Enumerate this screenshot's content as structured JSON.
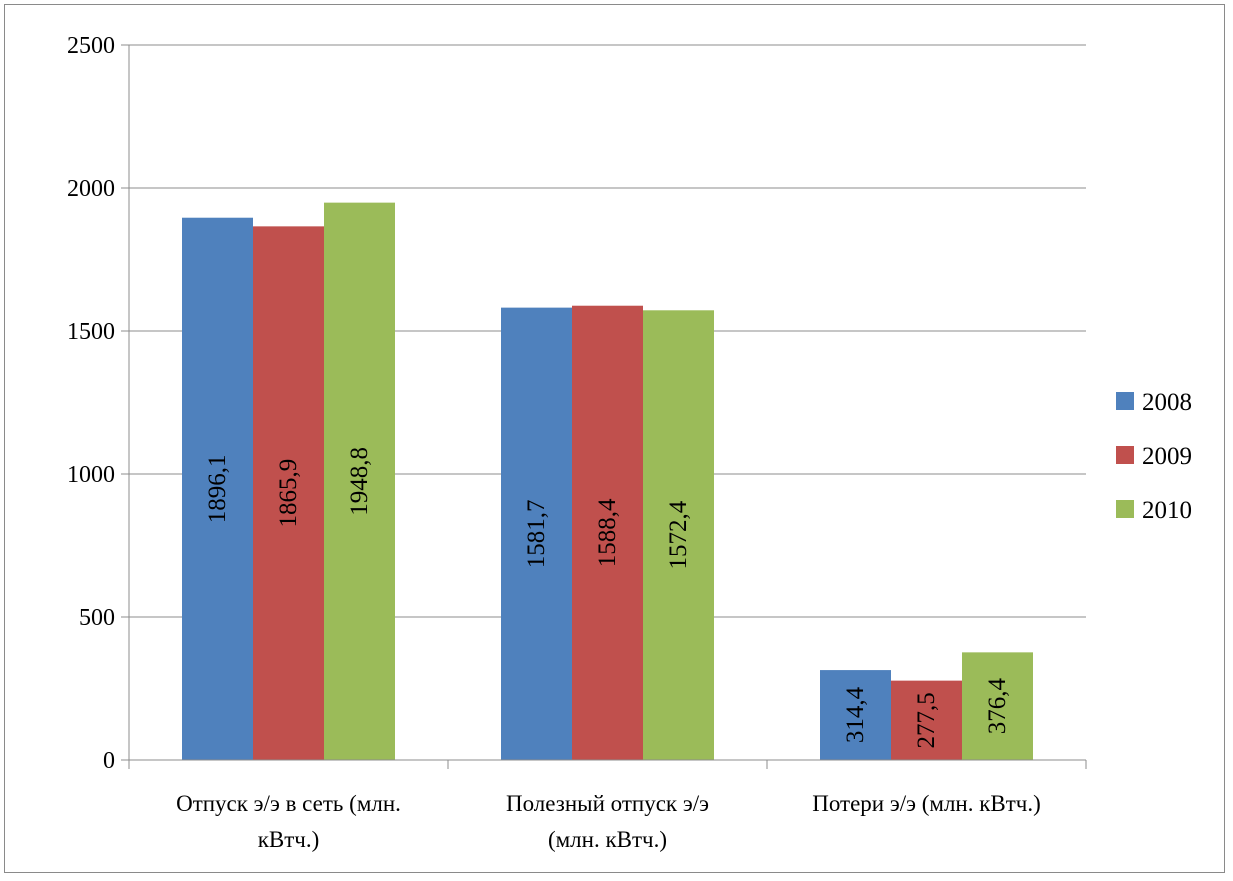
{
  "chart_data": {
    "type": "bar",
    "categories": [
      [
        "Отпуск э/э в сеть (млн.",
        "кВтч.)"
      ],
      [
        "Полезный отпуск э/э",
        "(млн. кВтч.)"
      ],
      [
        "Потери э/э (млн. кВтч.)"
      ]
    ],
    "series": [
      {
        "name": "2008",
        "color": "#4F81BD",
        "values": [
          1896.1,
          1581.7,
          314.4
        ],
        "labels": [
          "1896,1",
          "1581,7",
          "314,4"
        ]
      },
      {
        "name": "2009",
        "color": "#C0504D",
        "values": [
          1865.9,
          1588.4,
          277.5
        ],
        "labels": [
          "1865,9",
          "1588,4",
          "277,5"
        ]
      },
      {
        "name": "2010",
        "color": "#9BBB59",
        "values": [
          1948.8,
          1572.4,
          376.4
        ],
        "labels": [
          "1948,8",
          "1572,4",
          "376,4"
        ]
      }
    ],
    "yticks": [
      "0",
      "500",
      "1000",
      "1500",
      "2000",
      "2500"
    ],
    "ylim": [
      0,
      2500
    ],
    "grid": true,
    "legend_position": "right",
    "data_label_orientation": "vertical"
  }
}
